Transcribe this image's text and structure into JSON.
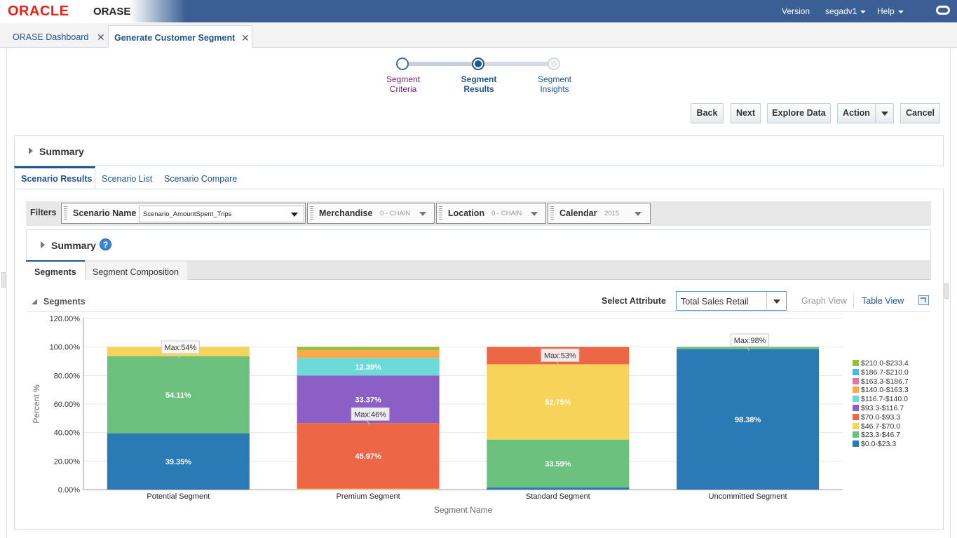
{
  "header": {
    "brand": "ORACLE",
    "app_name": "ORASE",
    "version_label": "Version",
    "user_label": "segadv1",
    "help_label": "Help",
    "ring_icon": "oracle-ring-icon"
  },
  "doc_tabs": [
    {
      "label": "ORASE Dashboard",
      "active": false
    },
    {
      "label": "Generate Customer Segment",
      "active": true
    }
  ],
  "train": {
    "steps": [
      {
        "label_line1": "Segment",
        "label_line2": "Criteria",
        "state": "visited"
      },
      {
        "label_line1": "Segment",
        "label_line2": "Results",
        "state": "current"
      },
      {
        "label_line1": "Segment",
        "label_line2": "Insights",
        "state": "unvisited"
      }
    ]
  },
  "toolbar": {
    "back": "Back",
    "next": "Next",
    "explore": "Explore Data",
    "action": "Action",
    "cancel": "Cancel"
  },
  "summary_outer": "Summary",
  "panel_tabs": [
    "Scenario Results",
    "Scenario List",
    "Scenario Compare"
  ],
  "filters": {
    "label": "Filters",
    "scenario_name_label": "Scenario Name",
    "scenario_name_value": "Scenario_AmountSpent_Trips",
    "merchandise_label": "Merchandise",
    "merchandise_value": "0 - CHAIN",
    "location_label": "Location",
    "location_value": "0 - CHAIN",
    "calendar_label": "Calendar",
    "calendar_value": "2015"
  },
  "summary_inner": "Summary",
  "sub_tabs": [
    "Segments",
    "Segment Composition"
  ],
  "segments_section": {
    "title": "Segments",
    "select_attribute_label": "Select Attribute",
    "select_attribute_value": "Total Sales Retail",
    "graph_view": "Graph View",
    "table_view": "Table View"
  },
  "chart_data": {
    "type": "bar",
    "stacked": true,
    "categories": [
      "Potential Segment",
      "Premium Segment",
      "Standard Segment",
      "Uncommitted Segment"
    ],
    "xlabel": "Segment Name",
    "ylabel": "Percent %",
    "ylim": [
      0,
      120
    ],
    "yticks": [
      "0.00%",
      "20.00%",
      "40.00%",
      "60.00%",
      "80.00%",
      "100.00%",
      "120.00%"
    ],
    "legend_position": "right",
    "series": [
      {
        "name": "$0.0-$23.3",
        "color": "#2a7ab5",
        "values": [
          39.35,
          0,
          1.5,
          98.38
        ]
      },
      {
        "name": "$23.3-$46.7",
        "color": "#6cc17e",
        "values": [
          54.11,
          0,
          33.59,
          1.62
        ]
      },
      {
        "name": "$46.7-$70.0",
        "color": "#f7d35a",
        "values": [
          6.54,
          0.6,
          52.75,
          0
        ]
      },
      {
        "name": "$70.0-$93.3",
        "color": "#ed6747",
        "values": [
          0,
          45.97,
          12.16,
          0
        ]
      },
      {
        "name": "$93.3-$116.7",
        "color": "#8a5fc6",
        "values": [
          0,
          33.37,
          0,
          0
        ]
      },
      {
        "name": "$116.7-$140.0",
        "color": "#6cdad8",
        "values": [
          0,
          12.39,
          0,
          0
        ]
      },
      {
        "name": "$140.0-$163.3",
        "color": "#f8a94a",
        "values": [
          0,
          5.5,
          0,
          0
        ]
      },
      {
        "name": "$163.3-$186.7",
        "color": "#e672a6",
        "values": [
          0,
          0,
          0,
          0
        ]
      },
      {
        "name": "$186.7-$210.0",
        "color": "#4ab9ea",
        "values": [
          0,
          0,
          0,
          0
        ]
      },
      {
        "name": "$210.0-$233.4",
        "color": "#9bbd3c",
        "values": [
          0,
          2.17,
          0,
          0
        ]
      }
    ],
    "data_labels": [
      {
        "category": 0,
        "series": 0,
        "text": "39.35%"
      },
      {
        "category": 0,
        "series": 1,
        "text": "54.11%"
      },
      {
        "category": 1,
        "series": 3,
        "text": "45.97%"
      },
      {
        "category": 1,
        "series": 4,
        "text": "33.37%"
      },
      {
        "category": 1,
        "series": 5,
        "text": "12.39%"
      },
      {
        "category": 2,
        "series": 1,
        "text": "33.59%"
      },
      {
        "category": 2,
        "series": 2,
        "text": "52.75%"
      },
      {
        "category": 3,
        "series": 0,
        "text": "98.38%"
      }
    ],
    "max_annotations": [
      {
        "category": 0,
        "text": "Max:54%"
      },
      {
        "category": 1,
        "text": "Max:46%"
      },
      {
        "category": 2,
        "text": "Max:53%"
      },
      {
        "category": 3,
        "text": "Max:98%"
      }
    ]
  }
}
